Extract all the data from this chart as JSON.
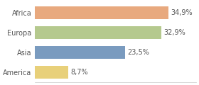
{
  "categories": [
    "Africa",
    "Europa",
    "Asia",
    "America"
  ],
  "values": [
    34.9,
    32.9,
    23.5,
    8.7
  ],
  "labels": [
    "34,9%",
    "32,9%",
    "23,5%",
    "8,7%"
  ],
  "bar_colors": [
    "#e8a97e",
    "#b5c98e",
    "#7a9bbf",
    "#e8d07a"
  ],
  "background_color": "#ffffff",
  "xlim": [
    0,
    42
  ],
  "bar_height": 0.62,
  "label_fontsize": 7,
  "tick_fontsize": 7
}
